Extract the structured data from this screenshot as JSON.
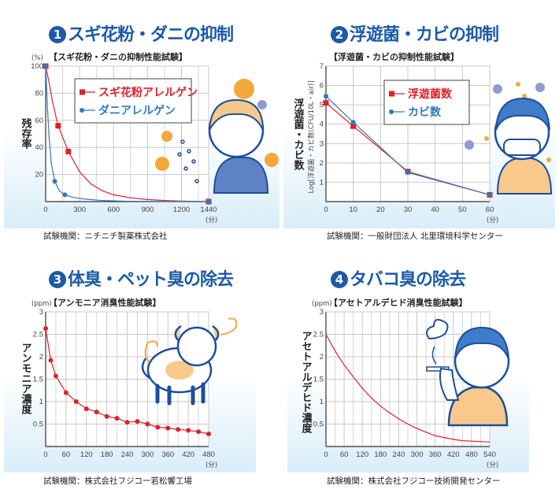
{
  "panels": [
    {
      "number": "1",
      "title": "スギ花粉・ダニの抑制",
      "source": "試験機関：ニチニチ製薬株式会社"
    },
    {
      "number": "2",
      "title": "浮遊菌・カビの抑制",
      "source": "試験機関：一般財団法人 北里環境科学センター"
    },
    {
      "number": "3",
      "title": "体臭・ペット臭の除去",
      "source": "試験機関：株式会社フジコー若松響工場"
    },
    {
      "number": "4",
      "title": "タバコ臭の除去",
      "source": "試験機関：株式会社フジコー技術開発センター"
    }
  ],
  "colors": {
    "title": "#1c5aa8",
    "red": "#e0202a",
    "blue": "#2f78c2"
  },
  "chart_data": [
    {
      "type": "line",
      "title": "【スギ花粉・ダニの抑制性能試験】",
      "ylabel": "残存率",
      "yunit": "(%)",
      "xunit": "(分)",
      "xlim": [
        0,
        1440
      ],
      "ylim": [
        0,
        100
      ],
      "xticks": [
        0,
        300,
        600,
        900,
        1200,
        1440
      ],
      "yticks": [
        20,
        40,
        60,
        80,
        100
      ],
      "legend": "top-center",
      "series": [
        {
          "name": "スギ花粉アレルゲン",
          "color": "#e0202a",
          "marker": "square",
          "points": [
            [
              0,
              100
            ],
            [
              110,
              56
            ],
            [
              200,
              37
            ],
            [
              1440,
              0
            ]
          ],
          "curve": [
            [
              0,
              100
            ],
            [
              30,
              88
            ],
            [
              60,
              74
            ],
            [
              110,
              56
            ],
            [
              200,
              37
            ],
            [
              300,
              22
            ],
            [
              400,
              13
            ],
            [
              500,
              8
            ],
            [
              600,
              5
            ],
            [
              750,
              2.8
            ],
            [
              900,
              1.5
            ],
            [
              1050,
              0.8
            ],
            [
              1200,
              0.4
            ],
            [
              1440,
              0
            ]
          ]
        },
        {
          "name": "ダニアレルゲン",
          "color": "#2f78c2",
          "marker": "circle",
          "points": [
            [
              0,
              100
            ],
            [
              80,
              15
            ],
            [
              170,
              5
            ],
            [
              1440,
              0
            ]
          ],
          "curve": [
            [
              0,
              100
            ],
            [
              15,
              70
            ],
            [
              30,
              48
            ],
            [
              50,
              28
            ],
            [
              80,
              15
            ],
            [
              120,
              8
            ],
            [
              170,
              5
            ],
            [
              250,
              3
            ],
            [
              350,
              1.8
            ],
            [
              500,
              0.8
            ],
            [
              700,
              0.3
            ],
            [
              1000,
              0.1
            ],
            [
              1440,
              0
            ]
          ]
        }
      ]
    },
    {
      "type": "line",
      "title": "【浮遊菌・カビの抑制性能試験】",
      "ylabel": "浮遊菌・カビ数",
      "ylabel2": "Log[浮遊菌・カビ数(CFU/10L・air)]",
      "xunit": "(分)",
      "xlim": [
        0,
        60
      ],
      "ylim": [
        0,
        7
      ],
      "xticks": [
        0,
        10,
        20,
        30,
        40,
        50,
        60
      ],
      "yticks": [
        1,
        2,
        3,
        4,
        5,
        6,
        7
      ],
      "legend": "top-center",
      "series": [
        {
          "name": "浮遊菌数",
          "color": "#e0202a",
          "marker": "square",
          "points": [
            [
              0,
              5.1
            ],
            [
              10,
              3.9
            ],
            [
              30,
              1.55
            ],
            [
              60,
              0.35
            ]
          ],
          "curve": [
            [
              0,
              5.1
            ],
            [
              10,
              3.9
            ],
            [
              30,
              1.55
            ],
            [
              60,
              0.35
            ]
          ]
        },
        {
          "name": "カビ数",
          "color": "#2f78c2",
          "marker": "circle",
          "points": [
            [
              0,
              5.45
            ],
            [
              10,
              4.1
            ],
            [
              30,
              1.5
            ],
            [
              60,
              0.35
            ]
          ],
          "curve": [
            [
              0,
              5.45
            ],
            [
              10,
              4.1
            ],
            [
              30,
              1.5
            ],
            [
              60,
              0.35
            ]
          ]
        }
      ]
    },
    {
      "type": "line",
      "title": "【アンモニア消臭性能試験】",
      "ylabel": "アンモニア濃度",
      "yunit": "(ppm)",
      "xunit": "(分)",
      "xlim": [
        0,
        480
      ],
      "ylim": [
        0,
        3.0
      ],
      "xticks": [
        0,
        60,
        120,
        180,
        240,
        300,
        360,
        420,
        480
      ],
      "yticks": [
        0.5,
        1.0,
        1.5,
        2.0,
        2.5,
        3.0
      ],
      "series": [
        {
          "name": "アンモニア",
          "color": "#e0202a",
          "marker": "circle",
          "points": [
            [
              0,
              2.63
            ],
            [
              15,
              1.92
            ],
            [
              30,
              1.57
            ],
            [
              60,
              1.2
            ],
            [
              90,
              1.0
            ],
            [
              120,
              0.84
            ],
            [
              150,
              0.77
            ],
            [
              180,
              0.67
            ],
            [
              210,
              0.63
            ],
            [
              240,
              0.54
            ],
            [
              270,
              0.56
            ],
            [
              300,
              0.5
            ],
            [
              330,
              0.43
            ],
            [
              360,
              0.41
            ],
            [
              390,
              0.38
            ],
            [
              420,
              0.36
            ],
            [
              450,
              0.33
            ],
            [
              480,
              0.28
            ]
          ],
          "curve": [
            [
              0,
              2.63
            ],
            [
              15,
              1.92
            ],
            [
              30,
              1.57
            ],
            [
              60,
              1.2
            ],
            [
              90,
              1.0
            ],
            [
              120,
              0.84
            ],
            [
              150,
              0.77
            ],
            [
              180,
              0.67
            ],
            [
              210,
              0.63
            ],
            [
              240,
              0.54
            ],
            [
              270,
              0.56
            ],
            [
              300,
              0.5
            ],
            [
              330,
              0.43
            ],
            [
              360,
              0.41
            ],
            [
              390,
              0.38
            ],
            [
              420,
              0.36
            ],
            [
              450,
              0.33
            ],
            [
              480,
              0.28
            ]
          ]
        }
      ]
    },
    {
      "type": "line",
      "title": "【アセトアルデヒド消臭性能試験】",
      "ylabel": "アセトアルデヒド濃度",
      "yunit": "(ppm)",
      "xunit": "(分)",
      "xlim": [
        0,
        540
      ],
      "ylim": [
        0,
        3.0
      ],
      "xticks": [
        0,
        60,
        120,
        180,
        240,
        300,
        360,
        420,
        480,
        540
      ],
      "yticks": [
        0.5,
        1.0,
        1.5,
        2.0,
        2.5,
        3.0
      ],
      "series": [
        {
          "name": "アセトアルデヒド",
          "color": "#e0202a",
          "marker": "none",
          "points": [],
          "curve": [
            [
              0,
              2.5
            ],
            [
              20,
              2.25
            ],
            [
              40,
              2.02
            ],
            [
              60,
              1.82
            ],
            [
              90,
              1.55
            ],
            [
              120,
              1.3
            ],
            [
              150,
              1.08
            ],
            [
              180,
              0.9
            ],
            [
              210,
              0.75
            ],
            [
              240,
              0.62
            ],
            [
              270,
              0.5
            ],
            [
              300,
              0.4
            ],
            [
              330,
              0.32
            ],
            [
              360,
              0.24
            ],
            [
              390,
              0.2
            ],
            [
              420,
              0.16
            ],
            [
              450,
              0.13
            ],
            [
              480,
              0.12
            ],
            [
              510,
              0.11
            ],
            [
              540,
              0.1
            ]
          ]
        }
      ]
    }
  ]
}
